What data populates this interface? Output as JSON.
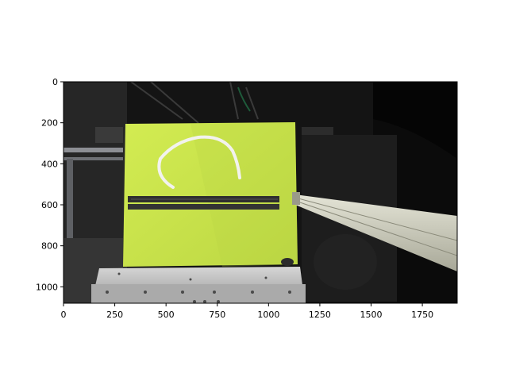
{
  "figure": {
    "image_description_icon": "robot-workcell-photo",
    "x_axis": {
      "range": [
        0,
        1920
      ],
      "ticks": [
        {
          "value": 0,
          "label": "0"
        },
        {
          "value": 250,
          "label": "250"
        },
        {
          "value": 500,
          "label": "500"
        },
        {
          "value": 750,
          "label": "750"
        },
        {
          "value": 1000,
          "label": "1000"
        },
        {
          "value": 1250,
          "label": "1250"
        },
        {
          "value": 1500,
          "label": "1500"
        },
        {
          "value": 1750,
          "label": "1750"
        }
      ]
    },
    "y_axis": {
      "range": [
        1080,
        0
      ],
      "ticks": [
        {
          "value": 0,
          "label": "0"
        },
        {
          "value": 200,
          "label": "200"
        },
        {
          "value": 400,
          "label": "400"
        },
        {
          "value": 600,
          "label": "600"
        },
        {
          "value": 800,
          "label": "800"
        },
        {
          "value": 1000,
          "label": "1000"
        }
      ]
    },
    "colors": {
      "board": "#c9e34a",
      "background_dark": "#141414",
      "rope": "#f2f2ee",
      "bar": "#2f2f2f",
      "rail": "#cfcfbf",
      "base": "#bcbcbc"
    }
  }
}
